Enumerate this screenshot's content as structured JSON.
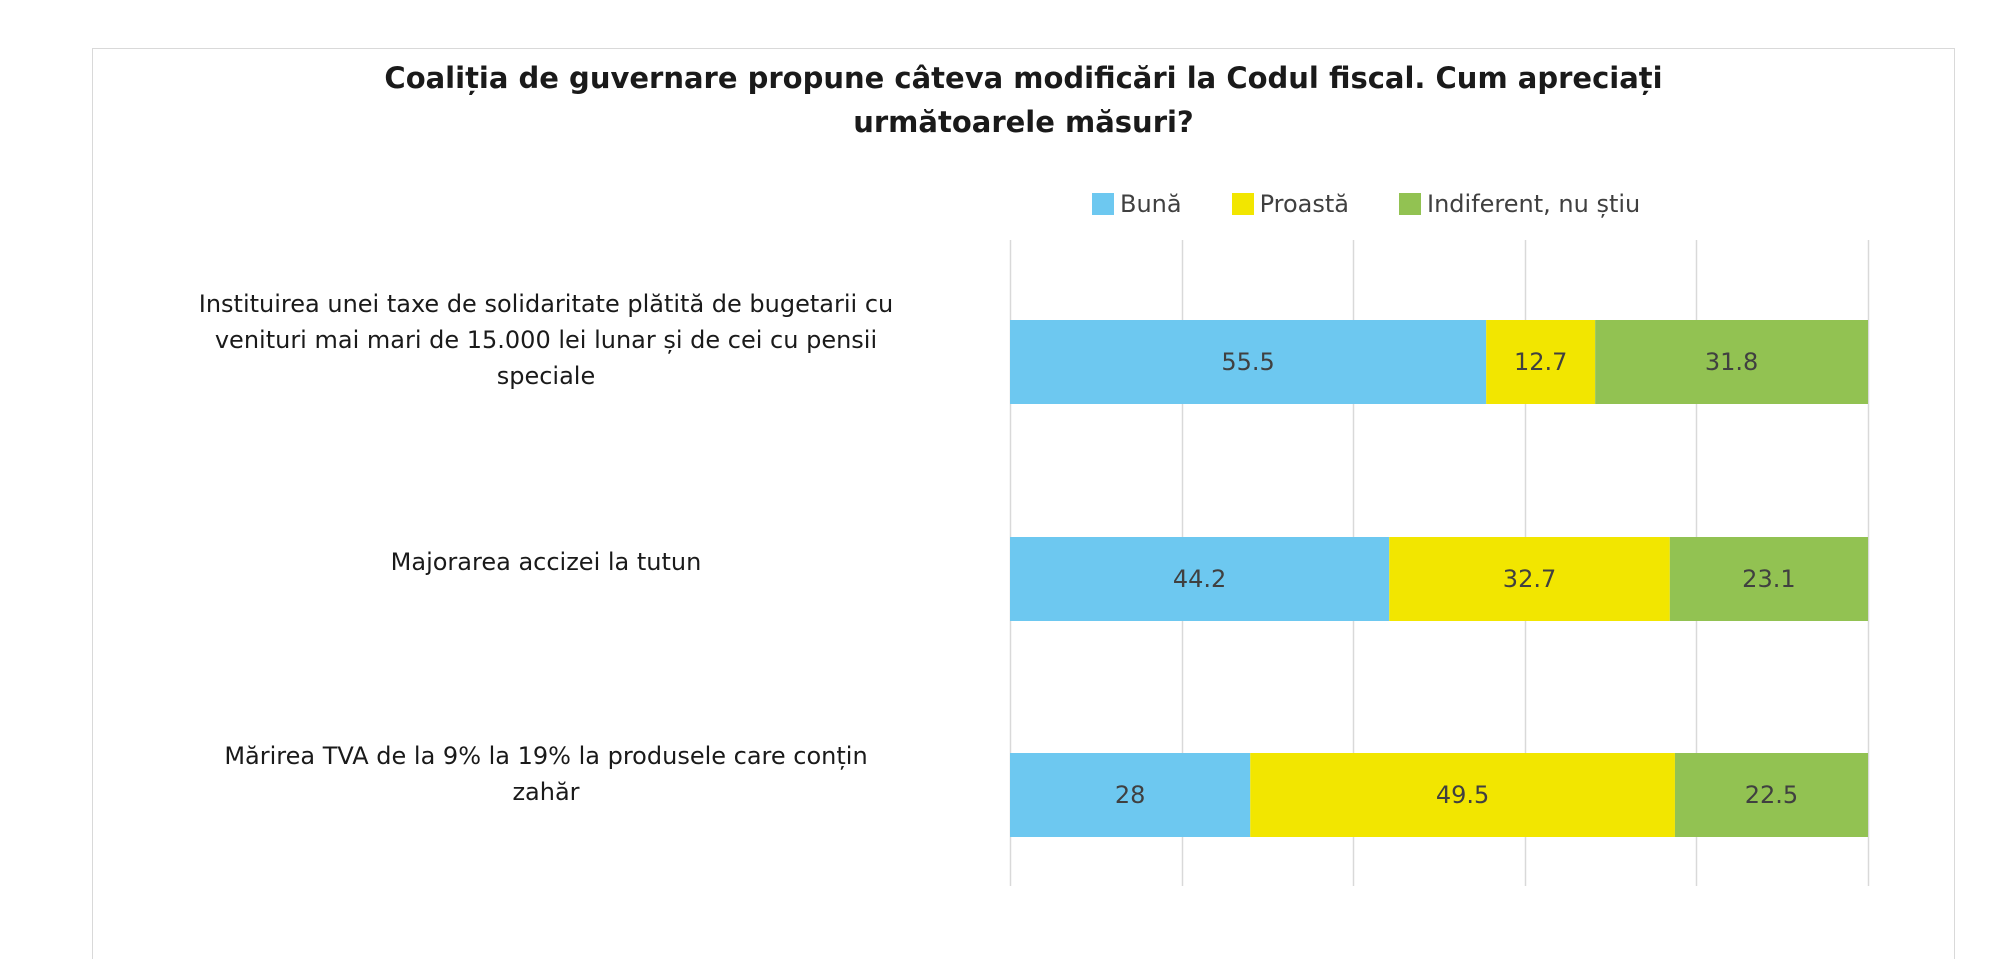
{
  "title_lines": [
    "Coaliția de guvernare propune câteva modificări la Codul fiscal. Cum apreciați",
    "următoarele măsuri?"
  ],
  "chart_data": {
    "type": "bar",
    "orientation": "horizontal",
    "stacked": "percent",
    "title": "Coaliția de guvernare propune câteva modificări la Codul fiscal. Cum apreciați următoarele măsuri?",
    "categories": [
      [
        "Instituirea unei taxe de solidaritate plătită de bugetarii cu",
        "venituri mai mari de 15.000 lei lunar și de cei cu pensii",
        "speciale"
      ],
      [
        "Majorarea accizei la tutun"
      ],
      [
        "Mărirea TVA de la 9% la 19% la produsele care conțin",
        "zahăr"
      ]
    ],
    "series": [
      {
        "name": "Bună",
        "color": "#6dc8f0",
        "values": [
          55.5,
          44.2,
          28
        ]
      },
      {
        "name": "Proastă",
        "color": "#f2e600",
        "values": [
          12.7,
          32.7,
          49.5
        ]
      },
      {
        "name": "Indiferent, nu știu",
        "color": "#92c252",
        "values": [
          31.8,
          23.1,
          22.5
        ]
      }
    ],
    "xlim": [
      0,
      100
    ],
    "grid": true,
    "legend_position": "top-right"
  }
}
